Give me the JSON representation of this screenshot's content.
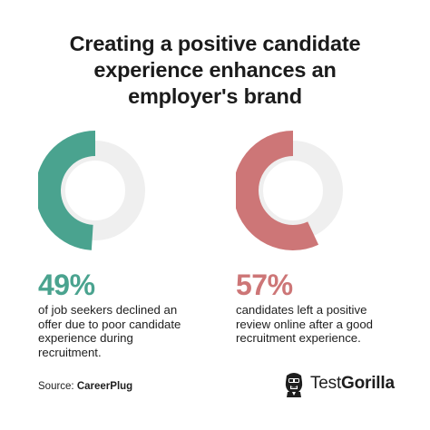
{
  "title": {
    "line1": "Creating a positive candidate",
    "line2": "experience enhances an",
    "line3": "employer's brand"
  },
  "stats": [
    {
      "percent_label": "49%",
      "value": 49,
      "color": "#4aa38f",
      "track_color": "#efefef",
      "line1": "of job seekers declined an",
      "line2": "offer due to poor candidate",
      "line3": "experience during",
      "line4": "recruitment."
    },
    {
      "percent_label": "57%",
      "value": 57,
      "color": "#cd7677",
      "track_color": "#efefef",
      "line1": "candidates left a positive",
      "line2": "review online after a good",
      "line3": "recruitment experience."
    }
  ],
  "source": {
    "prefix": "Source:",
    "name": "CareerPlug"
  },
  "logo": {
    "icon": "gorilla-icon",
    "word_regular": "Test",
    "word_bold": "Gorilla"
  }
}
